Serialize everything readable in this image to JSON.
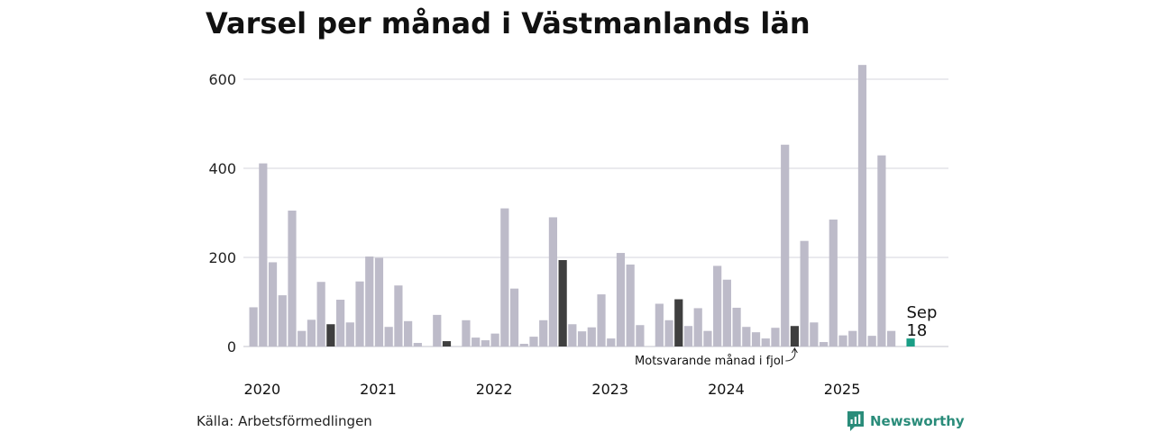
{
  "chart_data": {
    "type": "bar",
    "title": "Varsel per månad i Västmanlands län",
    "xlabel": "",
    "ylabel": "",
    "ylim": [
      0,
      640
    ],
    "yticks": [
      0,
      200,
      400,
      600
    ],
    "ytick_labels": [
      "0",
      "200",
      "400",
      "600"
    ],
    "year_labels": [
      "2020",
      "2021",
      "2022",
      "2023",
      "2024",
      "2025"
    ],
    "categories": [
      "2020-01",
      "2020-02",
      "2020-03",
      "2020-04",
      "2020-05",
      "2020-06",
      "2020-07",
      "2020-08",
      "2020-09",
      "2020-10",
      "2020-11",
      "2020-12",
      "2021-01",
      "2021-02",
      "2021-03",
      "2021-04",
      "2021-05",
      "2021-06",
      "2021-07",
      "2021-08",
      "2021-09",
      "2021-10",
      "2021-11",
      "2021-12",
      "2022-01",
      "2022-02",
      "2022-03",
      "2022-04",
      "2022-05",
      "2022-06",
      "2022-07",
      "2022-08",
      "2022-09",
      "2022-10",
      "2022-11",
      "2022-12",
      "2023-01",
      "2023-02",
      "2023-03",
      "2023-04",
      "2023-05",
      "2023-06",
      "2023-07",
      "2023-08",
      "2023-09",
      "2023-10",
      "2023-11",
      "2023-12",
      "2024-01",
      "2024-02",
      "2024-03",
      "2024-04",
      "2024-05",
      "2024-06",
      "2024-07",
      "2024-08",
      "2024-09",
      "2024-10",
      "2024-11",
      "2024-12",
      "2025-01",
      "2025-02",
      "2025-03",
      "2025-04",
      "2025-05",
      "2025-06",
      "2025-07",
      "2025-08",
      "2025-09"
    ],
    "values": [
      88,
      411,
      189,
      115,
      305,
      35,
      60,
      145,
      50,
      105,
      54,
      146,
      202,
      199,
      44,
      137,
      57,
      8,
      0,
      71,
      12,
      0,
      59,
      20,
      14,
      29,
      310,
      130,
      6,
      22,
      59,
      290,
      194,
      50,
      34,
      43,
      117,
      18,
      210,
      184,
      48,
      0,
      96,
      59,
      106,
      46,
      86,
      35,
      181,
      150,
      87,
      44,
      32,
      18,
      42,
      453,
      46,
      237,
      54,
      10,
      285,
      25,
      35,
      632,
      24,
      429,
      35,
      0,
      18
    ],
    "highlight_indices": [
      8,
      20,
      32,
      44,
      56
    ],
    "current_index": 68,
    "current_label_month": "Sep",
    "current_label_value": "18",
    "annotation": "Motsvarande månad i fjol",
    "colors": {
      "bar": "#bdbbc9",
      "highlight": "#3f3f3f",
      "current": "#1a9e86",
      "grid": "#dddde3"
    }
  },
  "footer": {
    "source": "Källa: Arbetsförmedlingen",
    "brand": "Newsworthy"
  },
  "colors": {
    "brand": "#2a8c7a",
    "background": "#ffffff"
  }
}
